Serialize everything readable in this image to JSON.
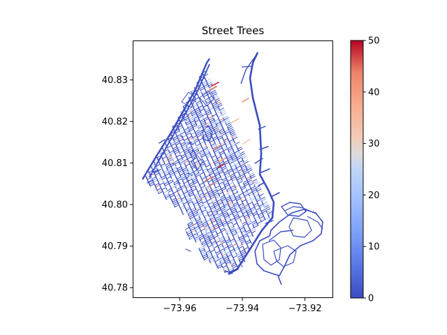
{
  "chart_data": {
    "type": "map",
    "title": "Street Trees",
    "xlabel": "",
    "ylabel": "",
    "xlim": [
      -73.975,
      -73.911
    ],
    "ylim": [
      40.7775,
      40.8395
    ],
    "x_ticks": [
      -73.96,
      -73.94,
      -73.92
    ],
    "x_tick_labels": [
      "−73.96",
      "−73.94",
      "−73.92"
    ],
    "y_ticks": [
      40.78,
      40.79,
      40.8,
      40.81,
      40.82,
      40.83
    ],
    "y_tick_labels": [
      "40.78",
      "40.79",
      "40.80",
      "40.81",
      "40.82",
      "40.83"
    ],
    "colorbar": {
      "colormap": "coolwarm",
      "range": [
        0,
        50
      ],
      "ticks": [
        0,
        10,
        20,
        30,
        40,
        50
      ],
      "tick_labels": [
        "0",
        "10",
        "20",
        "30",
        "40",
        "50"
      ]
    },
    "colors": {
      "low": "#3b4cc0",
      "mid": "#dddddd",
      "high": "#b40426"
    },
    "grid": false
  }
}
